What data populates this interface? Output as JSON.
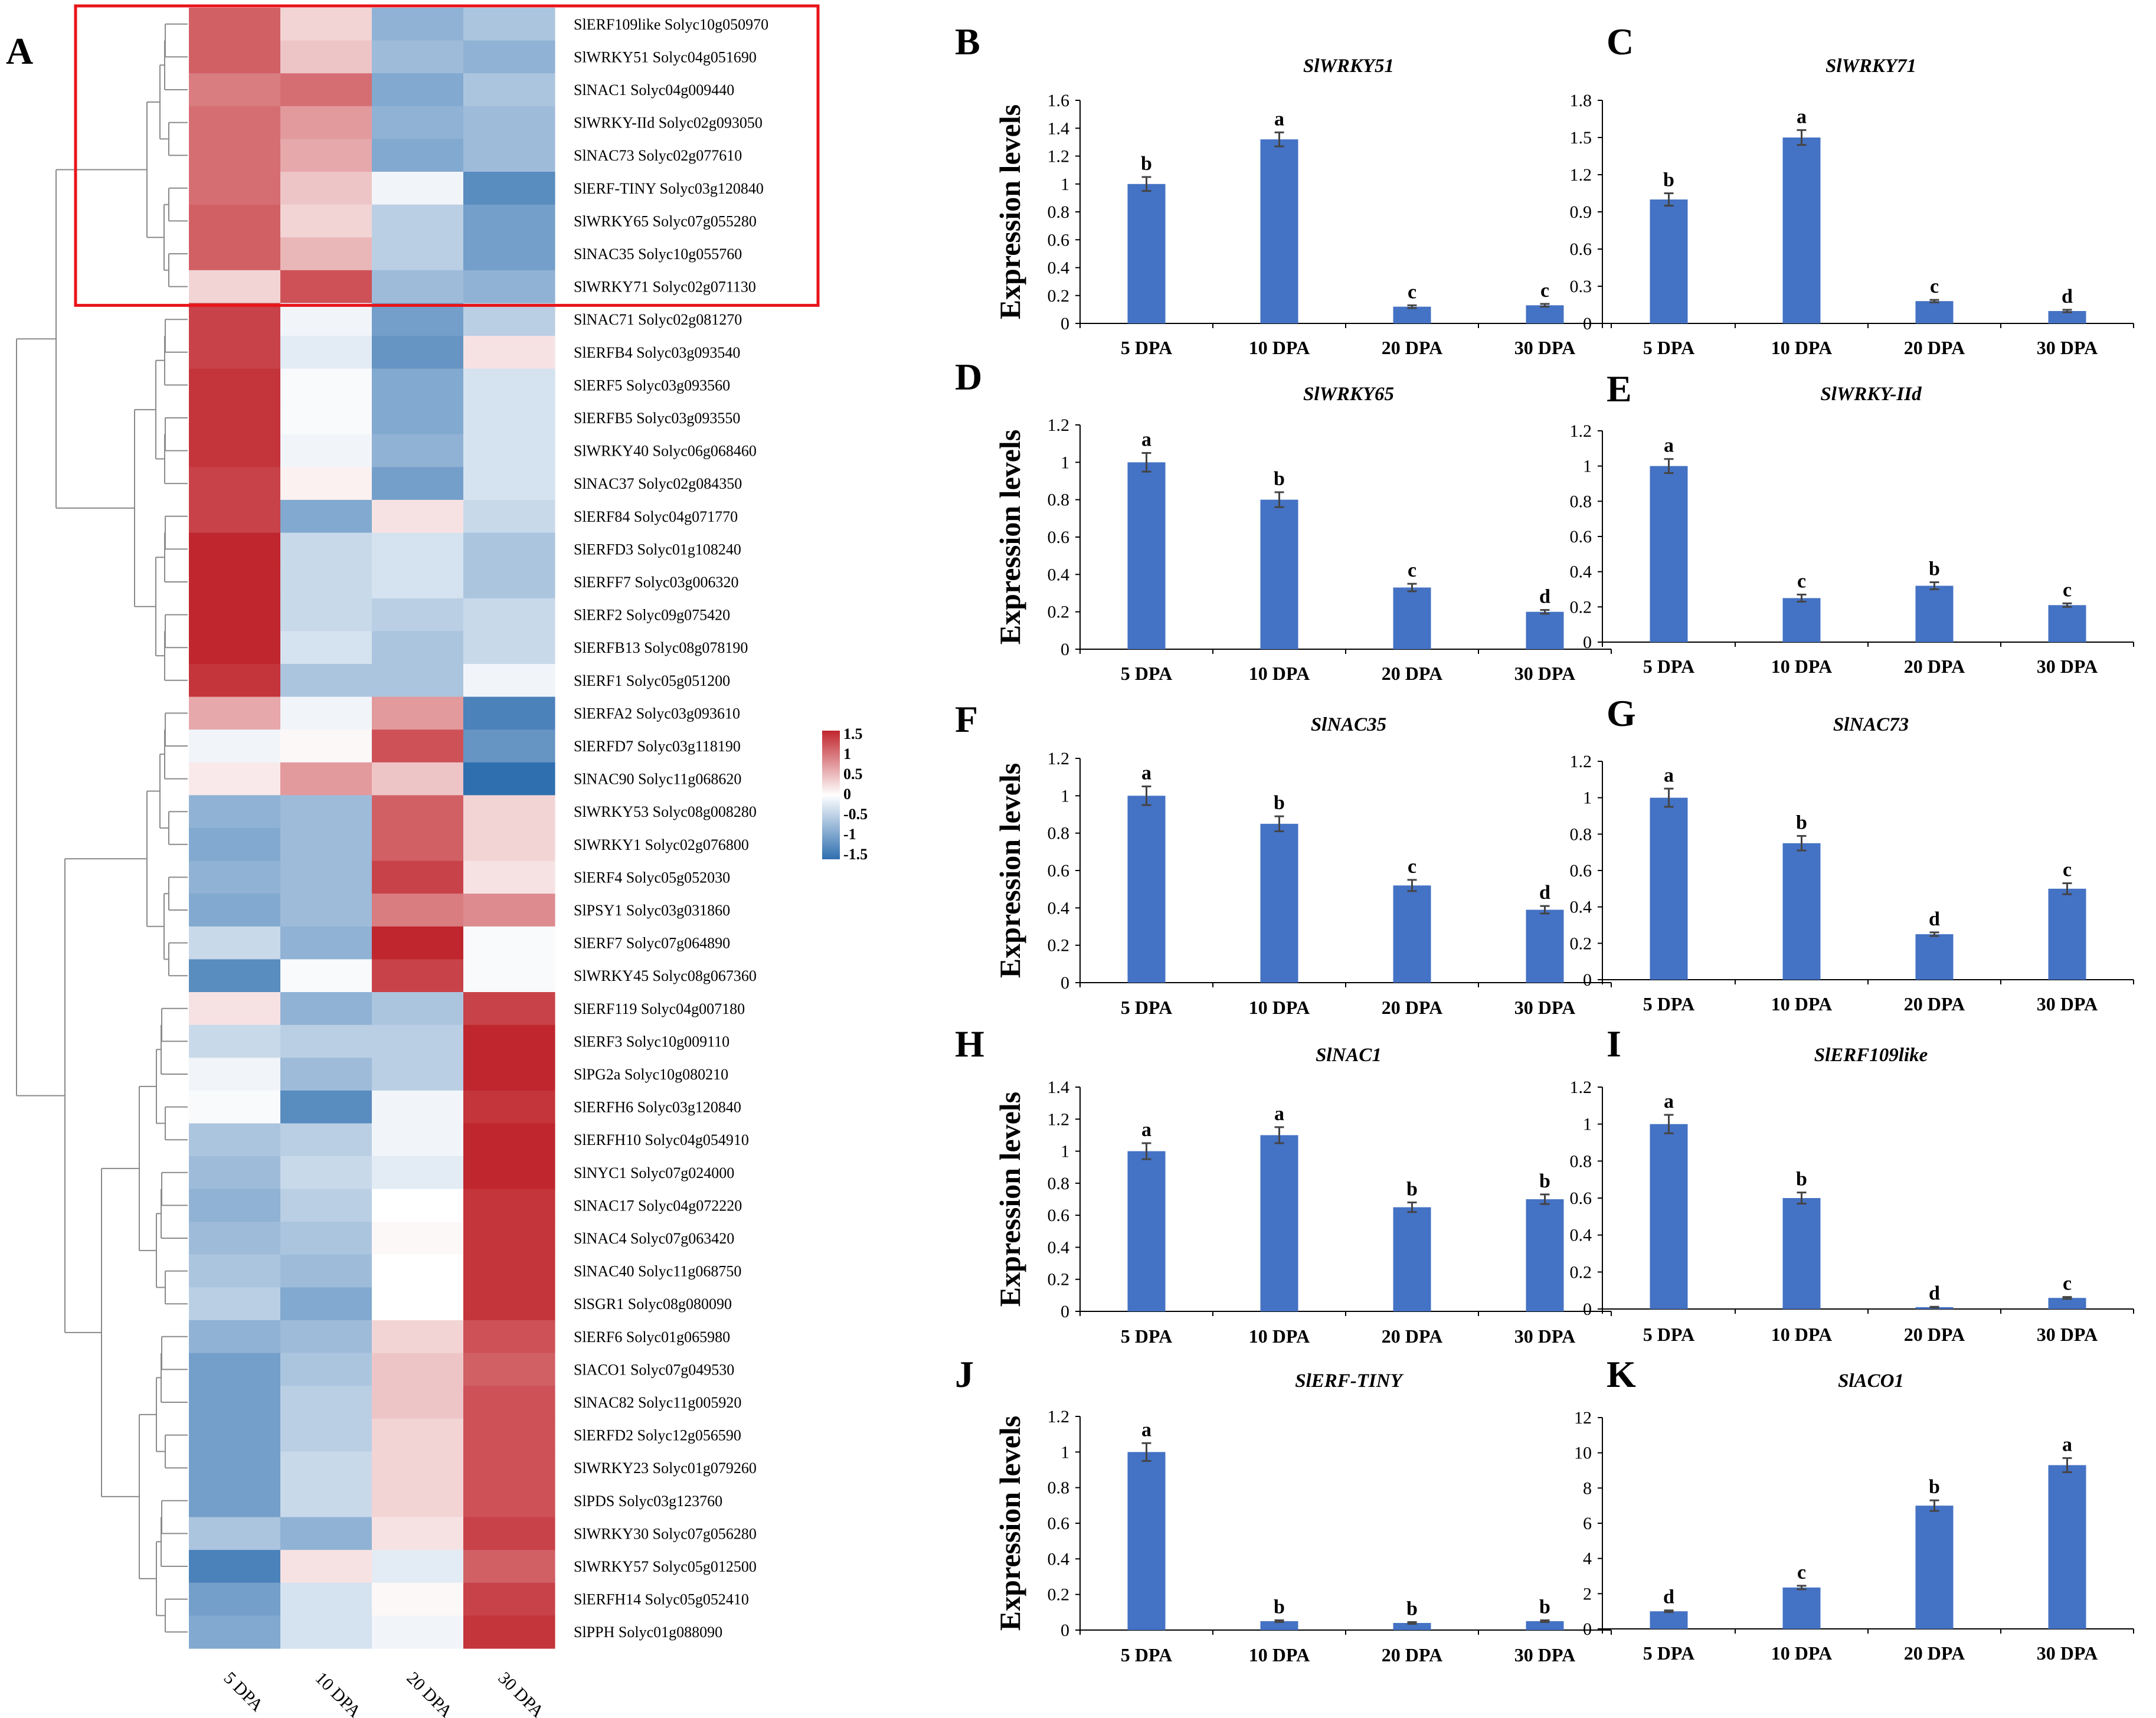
{
  "colors": {
    "bar": "#4472c4",
    "error": "#444444",
    "highlight_box": "#e8141a",
    "heat_high": "#c0262d",
    "heat_mid": "#ffffff",
    "heat_low": "#2f6faf"
  },
  "chart_data": [
    {
      "type": "heatmap",
      "panel": "A",
      "columns": [
        "5 DPA",
        "10 DPA",
        "20 DPA",
        "30 DPA"
      ],
      "rows": [
        {
          "label": "SlERF109like Solyc10g050970",
          "values": [
            1.1,
            0.3,
            -0.8,
            -0.6
          ]
        },
        {
          "label": "SlWRKY51 Solyc04g051690",
          "values": [
            1.1,
            0.4,
            -0.7,
            -0.8
          ]
        },
        {
          "label": "SlNAC1 Solyc04g009440",
          "values": [
            0.9,
            1.0,
            -0.9,
            -0.6
          ]
        },
        {
          "label": "SlWRKY-IId Solyc02g093050",
          "values": [
            1.0,
            0.7,
            -0.8,
            -0.7
          ]
        },
        {
          "label": "SlNAC73 Solyc02g077610",
          "values": [
            1.0,
            0.6,
            -0.9,
            -0.7
          ]
        },
        {
          "label": "SlERF-TINY Solyc03g120840",
          "values": [
            1.0,
            0.4,
            -0.1,
            -1.2
          ]
        },
        {
          "label": "SlWRKY65 Solyc07g055280",
          "values": [
            1.1,
            0.3,
            -0.5,
            -1.0
          ]
        },
        {
          "label": "SlNAC35 Solyc10g055760",
          "values": [
            1.1,
            0.5,
            -0.5,
            -1.0
          ]
        },
        {
          "label": "SlWRKY71 Solyc02g071130",
          "values": [
            0.3,
            1.2,
            -0.7,
            -0.8
          ]
        },
        {
          "label": "SlNAC71 Solyc02g081270",
          "values": [
            1.3,
            -0.1,
            -1.0,
            -0.5
          ]
        },
        {
          "label": "SlERFB4 Solyc03g093540",
          "values": [
            1.3,
            -0.2,
            -1.1,
            0.2
          ]
        },
        {
          "label": "SlERF5 Solyc03g093560",
          "values": [
            1.4,
            -0.05,
            -0.9,
            -0.3
          ]
        },
        {
          "label": "SlERFB5 Solyc03g093550",
          "values": [
            1.4,
            -0.05,
            -0.9,
            -0.3
          ]
        },
        {
          "label": "SlWRKY40 Solyc06g068460",
          "values": [
            1.4,
            -0.1,
            -0.8,
            -0.3
          ]
        },
        {
          "label": "SlNAC37 Solyc02g084350",
          "values": [
            1.3,
            0.1,
            -1.0,
            -0.3
          ]
        },
        {
          "label": "SlERF84 Solyc04g071770",
          "values": [
            1.3,
            -0.9,
            0.2,
            -0.4
          ]
        },
        {
          "label": "SlERFD3 Solyc01g108240",
          "values": [
            1.5,
            -0.4,
            -0.3,
            -0.6
          ]
        },
        {
          "label": "SlERFF7 Solyc03g006320",
          "values": [
            1.5,
            -0.4,
            -0.3,
            -0.6
          ]
        },
        {
          "label": "SlERF2 Solyc09g075420",
          "values": [
            1.5,
            -0.4,
            -0.5,
            -0.4
          ]
        },
        {
          "label": "SlERFB13 Solyc08g078190",
          "values": [
            1.5,
            -0.3,
            -0.6,
            -0.4
          ]
        },
        {
          "label": "SlERF1 Solyc05g051200",
          "values": [
            1.4,
            -0.6,
            -0.6,
            -0.1
          ]
        },
        {
          "label": "SlERFA2 Solyc03g093610",
          "values": [
            0.6,
            -0.1,
            0.7,
            -1.3
          ]
        },
        {
          "label": "SlERFD7 Solyc03g118190",
          "values": [
            -0.1,
            0.05,
            1.2,
            -1.1
          ]
        },
        {
          "label": "SlNAC90 Solyc11g068620",
          "values": [
            0.15,
            0.7,
            0.4,
            -1.5
          ]
        },
        {
          "label": "SlWRKY53 Solyc08g008280",
          "values": [
            -0.8,
            -0.7,
            1.1,
            0.3
          ]
        },
        {
          "label": "SlWRKY1 Solyc02g076800",
          "values": [
            -0.9,
            -0.7,
            1.1,
            0.3
          ]
        },
        {
          "label": "SlERF4 Solyc05g052030",
          "values": [
            -0.8,
            -0.7,
            1.3,
            0.2
          ]
        },
        {
          "label": "SlPSY1 Solyc03g031860",
          "values": [
            -0.9,
            -0.7,
            0.9,
            0.8
          ]
        },
        {
          "label": "SlERF7 Solyc07g064890",
          "values": [
            -0.4,
            -0.8,
            1.5,
            -0.05
          ]
        },
        {
          "label": "SlWRKY45 Solyc08g067360",
          "values": [
            -1.2,
            -0.05,
            1.3,
            -0.05
          ]
        },
        {
          "label": "SlERF119 Solyc04g007180",
          "values": [
            0.2,
            -0.8,
            -0.6,
            1.3
          ]
        },
        {
          "label": "SlERF3 Solyc10g009110",
          "values": [
            -0.4,
            -0.5,
            -0.5,
            1.5
          ]
        },
        {
          "label": "SlPG2a Solyc10g080210",
          "values": [
            -0.1,
            -0.7,
            -0.5,
            1.5
          ]
        },
        {
          "label": "SlERFH6 Solyc03g120840",
          "values": [
            -0.05,
            -1.2,
            -0.1,
            1.4
          ]
        },
        {
          "label": "SlERFH10 Solyc04g054910",
          "values": [
            -0.6,
            -0.5,
            -0.1,
            1.5
          ]
        },
        {
          "label": "SlNYC1 Solyc07g024000",
          "values": [
            -0.7,
            -0.4,
            -0.2,
            1.5
          ]
        },
        {
          "label": "SlNAC17 Solyc04g072220",
          "values": [
            -0.8,
            -0.5,
            0.0,
            1.4
          ]
        },
        {
          "label": "SlNAC4 Solyc07g063420",
          "values": [
            -0.7,
            -0.6,
            0.05,
            1.4
          ]
        },
        {
          "label": "SlNAC40 Solyc11g068750",
          "values": [
            -0.6,
            -0.7,
            0.0,
            1.4
          ]
        },
        {
          "label": "SlSGR1 Solyc08g080090",
          "values": [
            -0.5,
            -0.9,
            0.0,
            1.4
          ]
        },
        {
          "label": "SlERF6 Solyc01g065980",
          "values": [
            -0.8,
            -0.7,
            0.3,
            1.2
          ]
        },
        {
          "label": "SlACO1 Solyc07g049530",
          "values": [
            -1.0,
            -0.6,
            0.4,
            1.1
          ]
        },
        {
          "label": "SlNAC82 Solyc11g005920",
          "values": [
            -1.0,
            -0.5,
            0.4,
            1.2
          ]
        },
        {
          "label": "SlERFD2 Solyc12g056590",
          "values": [
            -1.0,
            -0.5,
            0.3,
            1.2
          ]
        },
        {
          "label": "SlWRKY23 Solyc01g079260",
          "values": [
            -1.0,
            -0.4,
            0.3,
            1.2
          ]
        },
        {
          "label": "SlPDS Solyc03g123760",
          "values": [
            -1.0,
            -0.4,
            0.3,
            1.2
          ]
        },
        {
          "label": "SlWRKY30 Solyc07g056280",
          "values": [
            -0.6,
            -0.8,
            0.2,
            1.3
          ]
        },
        {
          "label": "SlWRKY57 Solyc05g012500",
          "values": [
            -1.3,
            0.2,
            -0.2,
            1.1
          ]
        },
        {
          "label": "SlERFH14 Solyc05g052410",
          "values": [
            -1.0,
            -0.3,
            0.05,
            1.3
          ]
        },
        {
          "label": "SlPPH Solyc01g088090",
          "values": [
            -0.9,
            -0.3,
            -0.1,
            1.4
          ]
        }
      ],
      "highlighted_rows": 9,
      "legend": {
        "ticks": [
          "1.5",
          "1",
          "0.5",
          "0",
          "-0.5",
          "-1",
          "-1.5"
        ],
        "range": [
          -1.5,
          1.5
        ]
      }
    },
    {
      "type": "bar",
      "panel": "B",
      "title": "SlWRKY51",
      "ylabel": "Expression levels",
      "categories": [
        "5 DPA",
        "10 DPA",
        "20 DPA",
        "30 DPA"
      ],
      "values": [
        1.0,
        1.32,
        0.12,
        0.13
      ],
      "errors": [
        0.05,
        0.05,
        0.01,
        0.01
      ],
      "letters": [
        "b",
        "a",
        "c",
        "c"
      ],
      "yticks": [
        "0",
        "0.2",
        "0.4",
        "0.6",
        "0.8",
        "1",
        "1.2",
        "1.4",
        "1.6"
      ],
      "ylim": [
        0,
        1.6
      ]
    },
    {
      "type": "bar",
      "panel": "C",
      "title": "SlWRKY71",
      "ylabel": "",
      "categories": [
        "5 DPA",
        "10 DPA",
        "20 DPA",
        "30 DPA"
      ],
      "values": [
        1.0,
        1.5,
        0.18,
        0.1
      ],
      "errors": [
        0.05,
        0.06,
        0.01,
        0.01
      ],
      "letters": [
        "b",
        "a",
        "c",
        "d"
      ],
      "yticks": [
        "0",
        "0.3",
        "0.6",
        "0.9",
        "1.2",
        "1.5",
        "1.8"
      ],
      "ylim": [
        0,
        1.8
      ]
    },
    {
      "type": "bar",
      "panel": "D",
      "title": "SlWRKY65",
      "ylabel": "Expression levels",
      "categories": [
        "5 DPA",
        "10 DPA",
        "20 DPA",
        "30 DPA"
      ],
      "values": [
        1.0,
        0.8,
        0.33,
        0.2
      ],
      "errors": [
        0.05,
        0.04,
        0.02,
        0.01
      ],
      "letters": [
        "a",
        "b",
        "c",
        "d"
      ],
      "yticks": [
        "0",
        "0.2",
        "0.4",
        "0.6",
        "0.8",
        "1",
        "1.2"
      ],
      "ylim": [
        0,
        1.2
      ]
    },
    {
      "type": "bar",
      "panel": "E",
      "title": "SlWRKY-IId",
      "ylabel": "",
      "categories": [
        "5 DPA",
        "10 DPA",
        "20 DPA",
        "30 DPA"
      ],
      "values": [
        1.0,
        0.25,
        0.32,
        0.21
      ],
      "errors": [
        0.04,
        0.02,
        0.02,
        0.01
      ],
      "letters": [
        "a",
        "c",
        "b",
        "c"
      ],
      "yticks": [
        "0",
        "0.2",
        "0.4",
        "0.6",
        "0.8",
        "1",
        "1.2"
      ],
      "ylim": [
        0,
        1.2
      ]
    },
    {
      "type": "bar",
      "panel": "F",
      "title": "SlNAC35",
      "ylabel": "Expression levels",
      "categories": [
        "5 DPA",
        "10 DPA",
        "20 DPA",
        "30 DPA"
      ],
      "values": [
        1.0,
        0.85,
        0.52,
        0.39
      ],
      "errors": [
        0.05,
        0.04,
        0.03,
        0.02
      ],
      "letters": [
        "a",
        "b",
        "c",
        "d"
      ],
      "yticks": [
        "0",
        "0.2",
        "0.4",
        "0.6",
        "0.8",
        "1",
        "1.2"
      ],
      "ylim": [
        0,
        1.2
      ]
    },
    {
      "type": "bar",
      "panel": "G",
      "title": "SlNAC73",
      "ylabel": "",
      "categories": [
        "5 DPA",
        "10 DPA",
        "20 DPA",
        "30 DPA"
      ],
      "values": [
        1.0,
        0.75,
        0.25,
        0.5
      ],
      "errors": [
        0.05,
        0.04,
        0.01,
        0.03
      ],
      "letters": [
        "a",
        "b",
        "d",
        "c"
      ],
      "yticks": [
        "0",
        "0.2",
        "0.4",
        "0.6",
        "0.8",
        "1",
        "1.2"
      ],
      "ylim": [
        0,
        1.2
      ]
    },
    {
      "type": "bar",
      "panel": "H",
      "title": "SlNAC1",
      "ylabel": "Expression levels",
      "categories": [
        "5 DPA",
        "10 DPA",
        "20 DPA",
        "30 DPA"
      ],
      "values": [
        1.0,
        1.1,
        0.65,
        0.7
      ],
      "errors": [
        0.05,
        0.05,
        0.03,
        0.03
      ],
      "letters": [
        "a",
        "a",
        "b",
        "b"
      ],
      "yticks": [
        "0",
        "0.2",
        "0.4",
        "0.6",
        "0.8",
        "1",
        "1.2",
        "1.4"
      ],
      "ylim": [
        0,
        1.4
      ]
    },
    {
      "type": "bar",
      "panel": "I",
      "title": "SlERF109like",
      "ylabel": "",
      "categories": [
        "5 DPA",
        "10 DPA",
        "20 DPA",
        "30 DPA"
      ],
      "values": [
        1.0,
        0.6,
        0.01,
        0.06
      ],
      "errors": [
        0.05,
        0.03,
        0.002,
        0.005
      ],
      "letters": [
        "a",
        "b",
        "d",
        "c"
      ],
      "yticks": [
        "0",
        "0.2",
        "0.4",
        "0.6",
        "0.8",
        "1",
        "1.2"
      ],
      "ylim": [
        0,
        1.2
      ]
    },
    {
      "type": "bar",
      "panel": "J",
      "title": "SlERF-TINY",
      "ylabel": "Expression levels",
      "categories": [
        "5 DPA",
        "10 DPA",
        "20 DPA",
        "30 DPA"
      ],
      "values": [
        1.0,
        0.05,
        0.04,
        0.05
      ],
      "errors": [
        0.05,
        0.005,
        0.005,
        0.005
      ],
      "letters": [
        "a",
        "b",
        "b",
        "b"
      ],
      "yticks": [
        "0",
        "0.2",
        "0.4",
        "0.6",
        "0.8",
        "1",
        "1.2"
      ],
      "ylim": [
        0,
        1.2
      ]
    },
    {
      "type": "bar",
      "panel": "K",
      "title": "SlACO1",
      "ylabel": "",
      "categories": [
        "5 DPA",
        "10 DPA",
        "20 DPA",
        "30 DPA"
      ],
      "values": [
        1.0,
        2.35,
        7.0,
        9.3
      ],
      "errors": [
        0.05,
        0.1,
        0.3,
        0.4
      ],
      "letters": [
        "d",
        "c",
        "b",
        "a"
      ],
      "yticks": [
        "0",
        "2",
        "4",
        "6",
        "8",
        "10",
        "12"
      ],
      "ylim": [
        0,
        12
      ]
    }
  ]
}
